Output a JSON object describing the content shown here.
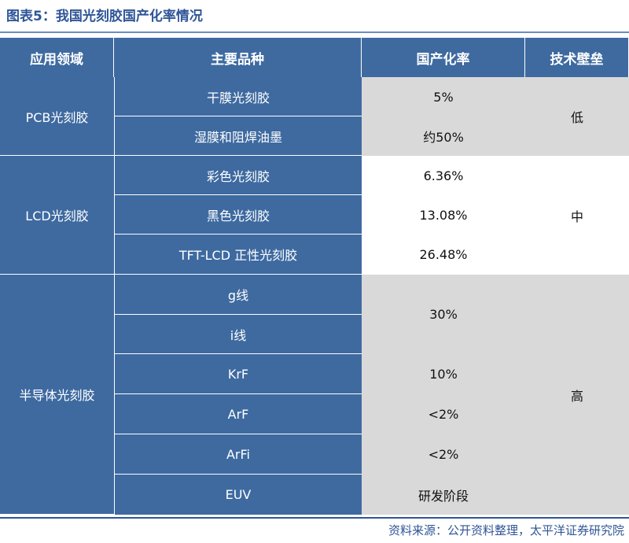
{
  "title": "图表5：我国光刻胶国产化率情况",
  "table": {
    "headers": [
      "应用领域",
      "主要品种",
      "国产化率",
      "技术壁垒"
    ],
    "groups": [
      {
        "application": "PCB光刻胶",
        "barrier": "低",
        "products": [
          "干膜光刻胶",
          "湿膜和阻焊油墨"
        ],
        "rates": [
          "5%",
          "约50%"
        ]
      },
      {
        "application": "LCD光刻胶",
        "barrier": "中",
        "products": [
          "彩色光刻胶",
          "黑色光刻胶",
          "TFT-LCD 正性光刻胶"
        ],
        "rates": [
          "6.36%",
          "13.08%",
          "26.48%"
        ]
      },
      {
        "application": "半导体光刻胶",
        "barrier": "高",
        "products": [
          "g线",
          "i线",
          "KrF",
          "ArF",
          "ArFi",
          "EUV"
        ],
        "rates": [
          "30%",
          "10%",
          "<2%",
          "<2%",
          "研发阶段"
        ]
      }
    ]
  },
  "source": "资料来源：公开资料整理，太平洋证券研究院",
  "colors": {
    "header_bg": "#3e6aa0",
    "title": "#2f5597",
    "gray_bg": "#d9d9d9"
  }
}
